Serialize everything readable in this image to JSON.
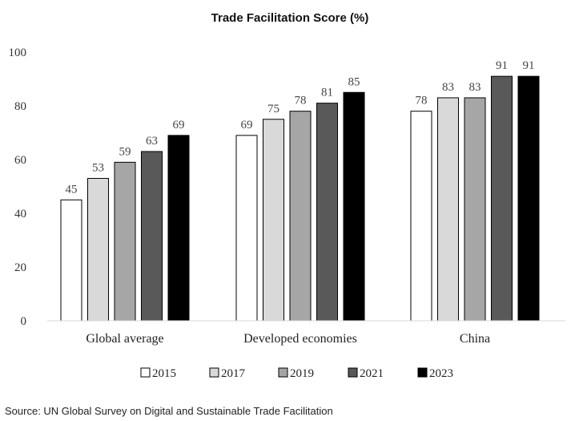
{
  "chart_data": {
    "type": "bar",
    "title": "Trade Facilitation Score (%)",
    "categories": [
      "Global average",
      "Developed economies",
      "China"
    ],
    "series": [
      {
        "name": "2015",
        "values": [
          45,
          69,
          78
        ],
        "color": "#ffffff"
      },
      {
        "name": "2017",
        "values": [
          53,
          75,
          83
        ],
        "color": "#d9d9d9"
      },
      {
        "name": "2019",
        "values": [
          59,
          78,
          83
        ],
        "color": "#a6a6a6"
      },
      {
        "name": "2021",
        "values": [
          63,
          81,
          91
        ],
        "color": "#595959"
      },
      {
        "name": "2023",
        "values": [
          69,
          85,
          91
        ],
        "color": "#000000"
      }
    ],
    "ylim": [
      0,
      100
    ],
    "yticks": [
      0,
      20,
      40,
      60,
      80,
      100
    ],
    "xlabel": "",
    "ylabel": "",
    "grid": false,
    "legend_position": "bottom",
    "bar_border_color": "#000000"
  },
  "source": "Source: UN Global Survey on Digital and Sustainable Trade Facilitation"
}
